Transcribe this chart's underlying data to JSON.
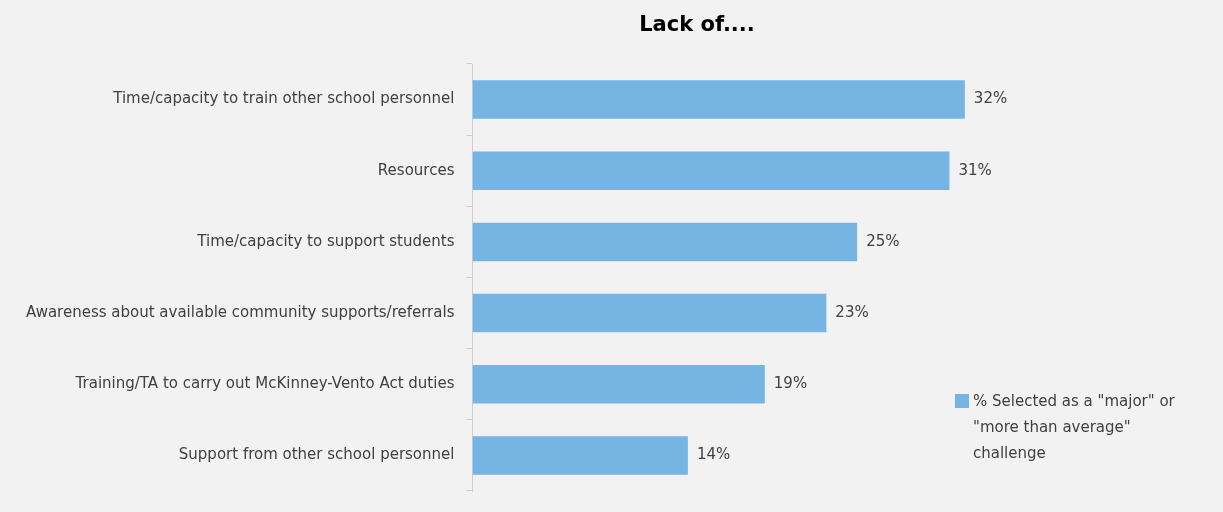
{
  "chart_data": {
    "type": "bar",
    "orientation": "horizontal",
    "title": "Lack of....",
    "categories": [
      "Time/capacity to train other school personnel",
      "Resources",
      "Time/capacity to support students",
      "Awareness about available community supports/referrals",
      "Training/TA to carry out McKinney-Vento Act duties",
      "Support from other school personnel"
    ],
    "series": [
      {
        "name": "% Selected as a \"major\" or \"more than average\" challenge",
        "color": "#75b4e3",
        "values": [
          32,
          31,
          25,
          23,
          19,
          14
        ],
        "value_labels": [
          "32%",
          "31%",
          "25%",
          "23%",
          "19%",
          "14%"
        ]
      }
    ],
    "grid": false,
    "legend": "right"
  }
}
